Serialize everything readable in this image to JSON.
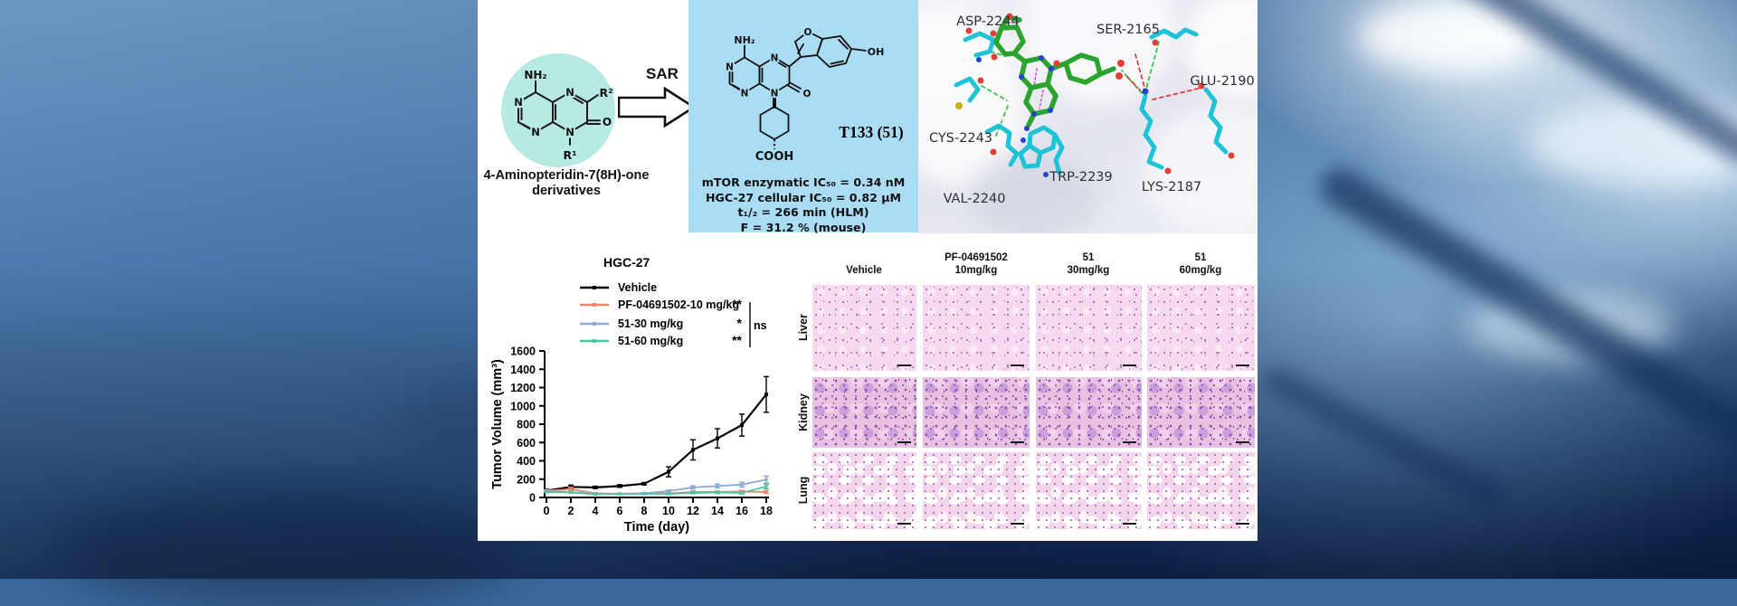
{
  "left_panel": {
    "sar_label": "SAR",
    "caption_line1": "4-Aminopteridin-7(8H)-one",
    "caption_line2": "derivatives",
    "highlight_color": "#b7eae3",
    "atoms": {
      "amine": "NH₂",
      "n1": "N",
      "n3": "N",
      "n5": "N",
      "n8": "N",
      "r2": "R²",
      "r1": "R¹",
      "oxo": "O"
    }
  },
  "compound_panel": {
    "panel_color": "#aadcf4",
    "name": "T133 (51)",
    "atoms": {
      "amine": "NH₂",
      "n1": "N",
      "n3": "N",
      "n5": "N",
      "n8": "N",
      "furan_o": "O",
      "hydroxyl": "OH",
      "oxo": "O",
      "carboxyl": "COOH"
    },
    "properties": [
      "mTOR enzymatic IC₅₀ = 0.34 nM",
      "HGC-27 cellular IC₅₀ = 0.82 μM",
      "t₁/₂ = 266 min (HLM)",
      "F = 31.2 % (mouse)"
    ]
  },
  "binding_panel": {
    "ligand_color": "#2aa42e",
    "residue_color": "#1ec3d6",
    "residues": [
      "ASP-2244",
      "SER-2165",
      "GLU-2190",
      "CYS-2243",
      "TRP-2239",
      "LYS-2187",
      "VAL-2240"
    ]
  },
  "chart_data": {
    "type": "line",
    "title": "HGC-27",
    "xlabel": "Time (day)",
    "ylabel": "Tumor Volume (mm³)",
    "x": [
      0,
      2,
      4,
      6,
      8,
      10,
      12,
      14,
      16,
      18
    ],
    "xlim": [
      0,
      18
    ],
    "ylim": [
      0,
      1600
    ],
    "xtick_step": 2,
    "ytick_step": 200,
    "grid": false,
    "legend_position": "top-left",
    "comparison_note": "ns",
    "series": [
      {
        "name": "Vehicle",
        "color": "#000000",
        "significance": "",
        "values": [
          75,
          115,
          110,
          125,
          150,
          280,
          520,
          645,
          790,
          1125
        ],
        "errors": [
          15,
          20,
          12,
          14,
          12,
          55,
          110,
          105,
          120,
          195
        ]
      },
      {
        "name": "PF-04691502-10 mg/kg",
        "color": "#F2846C",
        "significance": "**",
        "values": [
          75,
          90,
          45,
          40,
          45,
          45,
          60,
          60,
          65,
          60
        ],
        "errors": [
          8,
          20,
          8,
          6,
          6,
          8,
          10,
          10,
          12,
          15
        ]
      },
      {
        "name": "51-30 mg/kg",
        "color": "#8FA7D9",
        "significance": "*",
        "values": [
          70,
          60,
          40,
          40,
          45,
          70,
          110,
          125,
          140,
          195
        ],
        "errors": [
          8,
          8,
          6,
          6,
          8,
          12,
          18,
          22,
          25,
          38
        ]
      },
      {
        "name": "51-60 mg/kg",
        "color": "#4FC5A2",
        "significance": "**",
        "values": [
          60,
          55,
          35,
          40,
          40,
          40,
          50,
          55,
          50,
          120
        ],
        "errors": [
          6,
          6,
          5,
          5,
          6,
          8,
          10,
          12,
          12,
          25
        ]
      }
    ]
  },
  "histology": {
    "columns": [
      {
        "line1": "",
        "line2": "Vehicle"
      },
      {
        "line1": "PF-04691502",
        "line2": "10mg/kg"
      },
      {
        "line1": "51",
        "line2": "30mg/kg"
      },
      {
        "line1": "51",
        "line2": "60mg/kg"
      }
    ],
    "rows": [
      "Liver",
      "Kidney",
      "Lung"
    ]
  }
}
